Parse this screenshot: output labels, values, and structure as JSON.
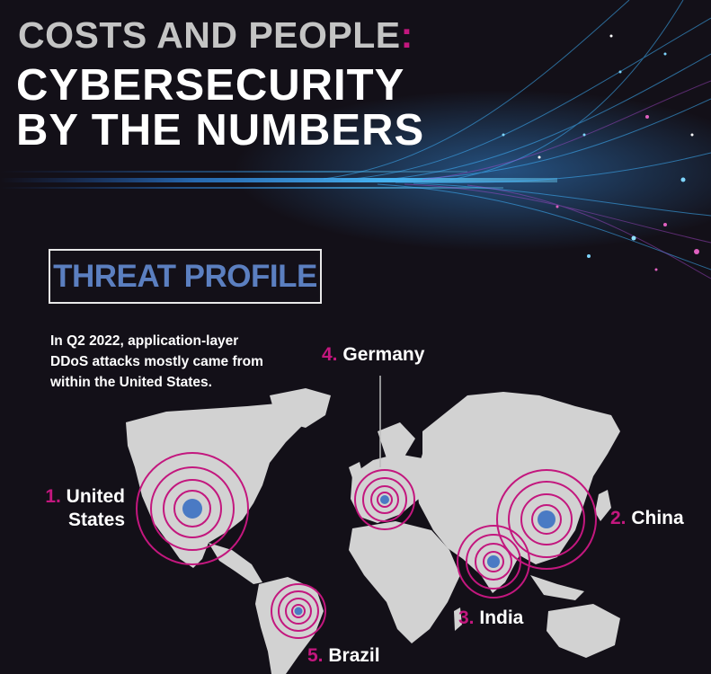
{
  "header": {
    "title_line1": "COSTS AND PEOPLE",
    "title_colon": ":",
    "title_line2a": "CYBERSECURITY",
    "title_line2b": "BY THE NUMBERS"
  },
  "section": {
    "badge": "THREAT PROFILE",
    "intro": "In Q2 2022, application-layer DDoS attacks mostly came from within the United States."
  },
  "map": {
    "locations": [
      {
        "rank": "1.",
        "name_line1": "United",
        "name_line2": "States"
      },
      {
        "rank": "2.",
        "name": "China"
      },
      {
        "rank": "3.",
        "name": "India"
      },
      {
        "rank": "4.",
        "name": "Germany"
      },
      {
        "rank": "5.",
        "name": "Brazil"
      }
    ]
  },
  "colors": {
    "background": "#131018",
    "accent_magenta": "#c3177e",
    "accent_blue": "#5b7fc0",
    "land": "#d2d2d2",
    "text": "#ffffff"
  }
}
